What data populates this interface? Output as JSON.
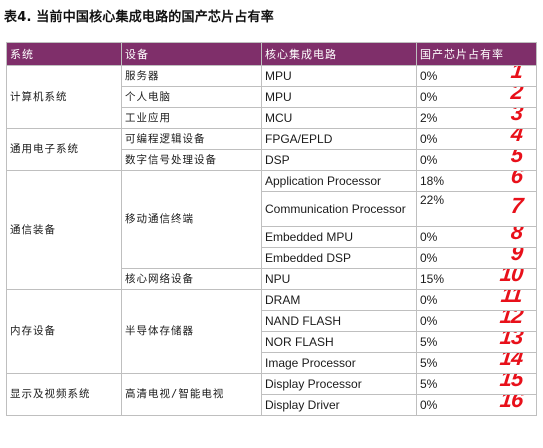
{
  "caption": "表4. 当前中国核心集成电路的国产芯片占有率",
  "columns": [
    "系统",
    "设备",
    "核心集成电路",
    "国产芯片占有率"
  ],
  "systems": {
    "computer": "计算机系统",
    "general_electronics": "通用电子系统",
    "communication": "通信装备",
    "memory": "内存设备",
    "display": "显示及视频系统"
  },
  "devices": {
    "server": "服务器",
    "pc": "个人电脑",
    "industrial": "工业应用",
    "programmable_logic": "可编程逻辑设备",
    "dsp_device": "数字信号处理设备",
    "mobile_terminal": "移动通信终端",
    "core_network": "核心网络设备",
    "semiconductor_storage": "半导体存储器",
    "hd_tv": "高清电视/智能电视"
  },
  "rows": [
    {
      "ic": "MPU",
      "rate": "0%",
      "mark": "1"
    },
    {
      "ic": "MPU",
      "rate": "0%",
      "mark": "2"
    },
    {
      "ic": "MCU",
      "rate": "2%",
      "mark": "3"
    },
    {
      "ic": "FPGA/EPLD",
      "rate": "0%",
      "mark": "4"
    },
    {
      "ic": "DSP",
      "rate": "0%",
      "mark": "5"
    },
    {
      "ic": "Application Processor",
      "rate": "18%",
      "mark": "6"
    },
    {
      "ic": "Communication Processor",
      "rate": "22%",
      "mark": "7"
    },
    {
      "ic": "Embedded MPU",
      "rate": "0%",
      "mark": "8"
    },
    {
      "ic": "Embedded DSP",
      "rate": "0%",
      "mark": "9"
    },
    {
      "ic": "NPU",
      "rate": "15%",
      "mark": "10"
    },
    {
      "ic": "DRAM",
      "rate": "0%",
      "mark": "11"
    },
    {
      "ic": "NAND FLASH",
      "rate": "0%",
      "mark": "12"
    },
    {
      "ic": "NOR FLASH",
      "rate": "5%",
      "mark": "13"
    },
    {
      "ic": "Image Processor",
      "rate": "5%",
      "mark": "14"
    },
    {
      "ic": "Display Processor",
      "rate": "5%",
      "mark": "15"
    },
    {
      "ic": "Display Driver",
      "rate": "0%",
      "mark": "16"
    }
  ],
  "colors": {
    "header_bg": "#7f2f6a",
    "annotation": "#e8101a"
  }
}
